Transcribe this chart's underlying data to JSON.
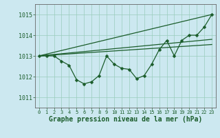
{
  "title": "Graphe pression niveau de la mer (hPa)",
  "background_color": "#cce8f0",
  "grid_color": "#99ccbb",
  "line_color": "#1a5c2a",
  "xlim": [
    -0.5,
    23.5
  ],
  "ylim": [
    1010.5,
    1015.5
  ],
  "yticks": [
    1011,
    1012,
    1013,
    1014,
    1015
  ],
  "xticks": [
    0,
    1,
    2,
    3,
    4,
    5,
    6,
    7,
    8,
    9,
    10,
    11,
    12,
    13,
    14,
    15,
    16,
    17,
    18,
    19,
    20,
    21,
    22,
    23
  ],
  "line1_x": [
    0,
    1,
    2,
    3,
    4,
    5,
    6,
    7,
    8,
    9,
    10,
    11,
    12,
    13,
    14,
    15,
    16,
    17,
    18,
    19,
    20,
    21,
    22,
    23
  ],
  "line1_y": [
    1013.0,
    1013.0,
    1013.0,
    1012.75,
    1012.55,
    1011.85,
    1011.65,
    1011.75,
    1012.05,
    1013.0,
    1012.6,
    1012.4,
    1012.35,
    1011.9,
    1012.05,
    1012.6,
    1013.3,
    1013.75,
    1013.0,
    1013.75,
    1014.0,
    1014.0,
    1014.4,
    1015.0
  ],
  "line2_x": [
    0,
    23
  ],
  "line2_y": [
    1013.0,
    1015.0
  ],
  "line3_x": [
    0,
    23
  ],
  "line3_y": [
    1013.0,
    1013.8
  ],
  "line4_x": [
    0,
    23
  ],
  "line4_y": [
    1013.0,
    1013.55
  ],
  "marker_size": 2.5,
  "font_size_tick": 6,
  "font_size_label": 7
}
